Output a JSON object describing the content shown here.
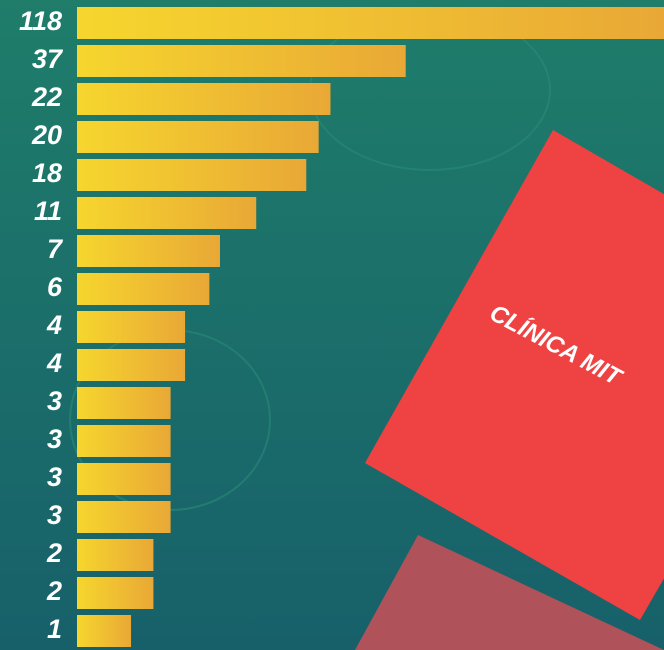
{
  "chart_data": {
    "type": "bar",
    "orientation": "horizontal",
    "values": [
      118,
      37,
      22,
      20,
      18,
      11,
      7,
      6,
      4,
      4,
      3,
      3,
      3,
      3,
      2,
      2,
      1
    ],
    "color": "#f2c02e",
    "xlim": [
      0,
      118
    ],
    "xscale": "sqrt",
    "annotations": [
      "CLÍNICA MIT"
    ]
  }
}
